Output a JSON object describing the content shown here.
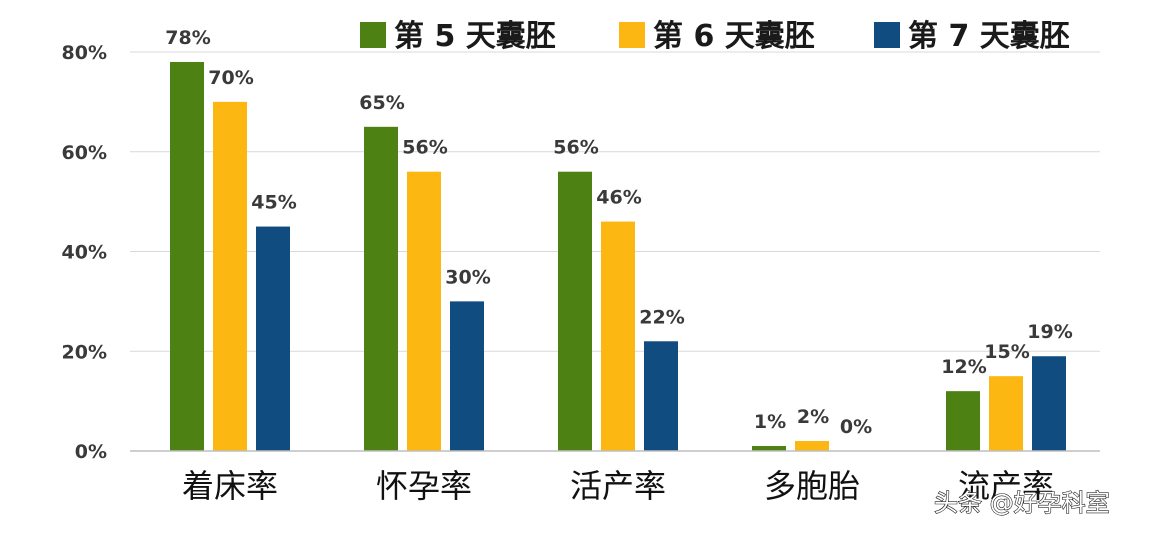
{
  "chart_data": {
    "type": "bar",
    "categories": [
      "着床率",
      "怀孕率",
      "活产率",
      "多胞胎",
      "流产率"
    ],
    "series": [
      {
        "name": "第 5 天囊胚",
        "color": "#4e8114",
        "values": [
          78,
          65,
          56,
          1,
          12
        ],
        "labels": [
          "78%",
          "65%",
          "56%",
          "1%",
          "12%"
        ]
      },
      {
        "name": "第 6 天囊胚",
        "color": "#fcb712",
        "values": [
          70,
          56,
          46,
          2,
          15
        ],
        "labels": [
          "70%",
          "56%",
          "46%",
          "2%",
          "15%"
        ]
      },
      {
        "name": "第 7 天囊胚",
        "color": "#104c80",
        "values": [
          45,
          30,
          22,
          0,
          19
        ],
        "labels": [
          "45%",
          "30%",
          "22%",
          "0%",
          "19%"
        ]
      }
    ],
    "yticks": [
      "0%",
      "20%",
      "40%",
      "60%",
      "80%"
    ],
    "ylim": [
      0,
      80
    ],
    "grid": true,
    "legend": "top",
    "title": "",
    "xlabel": "",
    "ylabel": ""
  },
  "watermark": "头条 @好孕科室"
}
